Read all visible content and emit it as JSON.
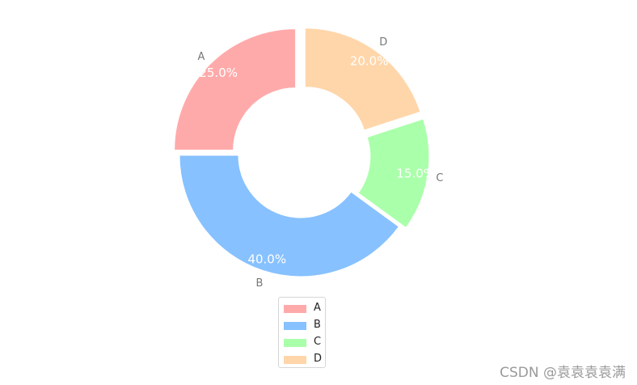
{
  "chart_data": {
    "type": "pie",
    "variant": "donut",
    "start_angle_deg": 90,
    "direction": "counterclockwise",
    "categories": [
      "A",
      "B",
      "C",
      "D"
    ],
    "values": [
      25.0,
      40.0,
      15.0,
      20.0
    ],
    "percent_labels": [
      "25.0%",
      "40.0%",
      "15.0%",
      "20.0%"
    ],
    "colors": [
      "#ffaaaa",
      "#87c1ff",
      "#aaffaa",
      "#ffd6aa"
    ],
    "exploded": [
      "A",
      "C",
      "D"
    ],
    "legend": {
      "placement": "bottom-center",
      "entries": [
        "A",
        "B",
        "C",
        "D"
      ]
    }
  },
  "watermark": "CSDN @袁袁袁袁满"
}
